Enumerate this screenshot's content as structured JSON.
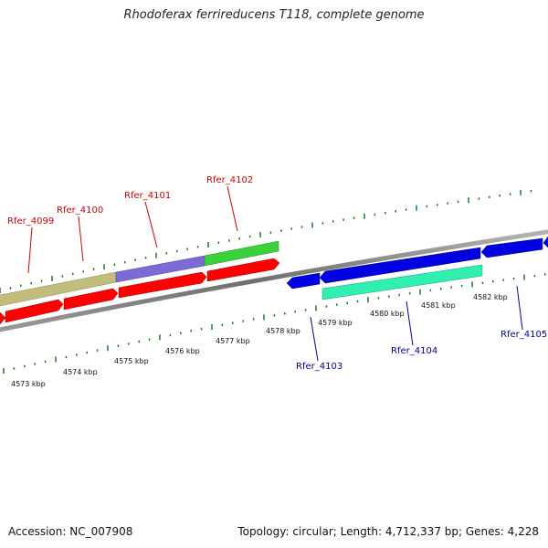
{
  "title": "Rhodoferax ferrireducens T118, complete genome",
  "footer": {
    "accession": "Accession: NC_007908",
    "topology": "Topology: circular; Length: 4,712,337 bp; Genes: 4,228"
  },
  "colors": {
    "forward_gene": "#ff0000",
    "reverse_gene": "#0000e0",
    "forward_label": "#cc0000",
    "reverse_label": "#000099",
    "ruler_ticks": "#1a7a1a",
    "backbone": "#808080"
  },
  "ticks": [
    "4573 kbp",
    "4574 kbp",
    "4575 kbp",
    "4576 kbp",
    "4577 kbp",
    "4578 kbp",
    "4579 kbp",
    "4580 kbp",
    "4581 kbp",
    "4582 kbp"
  ],
  "labels": {
    "forward": [
      "Rfer_4099",
      "Rfer_4100",
      "Rfer_4101",
      "Rfer_4102"
    ],
    "reverse": [
      "Rfer_4103",
      "Rfer_4104",
      "Rfer_4105"
    ]
  },
  "feature_colors": {
    "feature_4099": "#c2bd7c",
    "feature_4101": "#7a6bd6",
    "feature_4102": "#3bd13b",
    "feature_4104": "#2ff0b0"
  }
}
